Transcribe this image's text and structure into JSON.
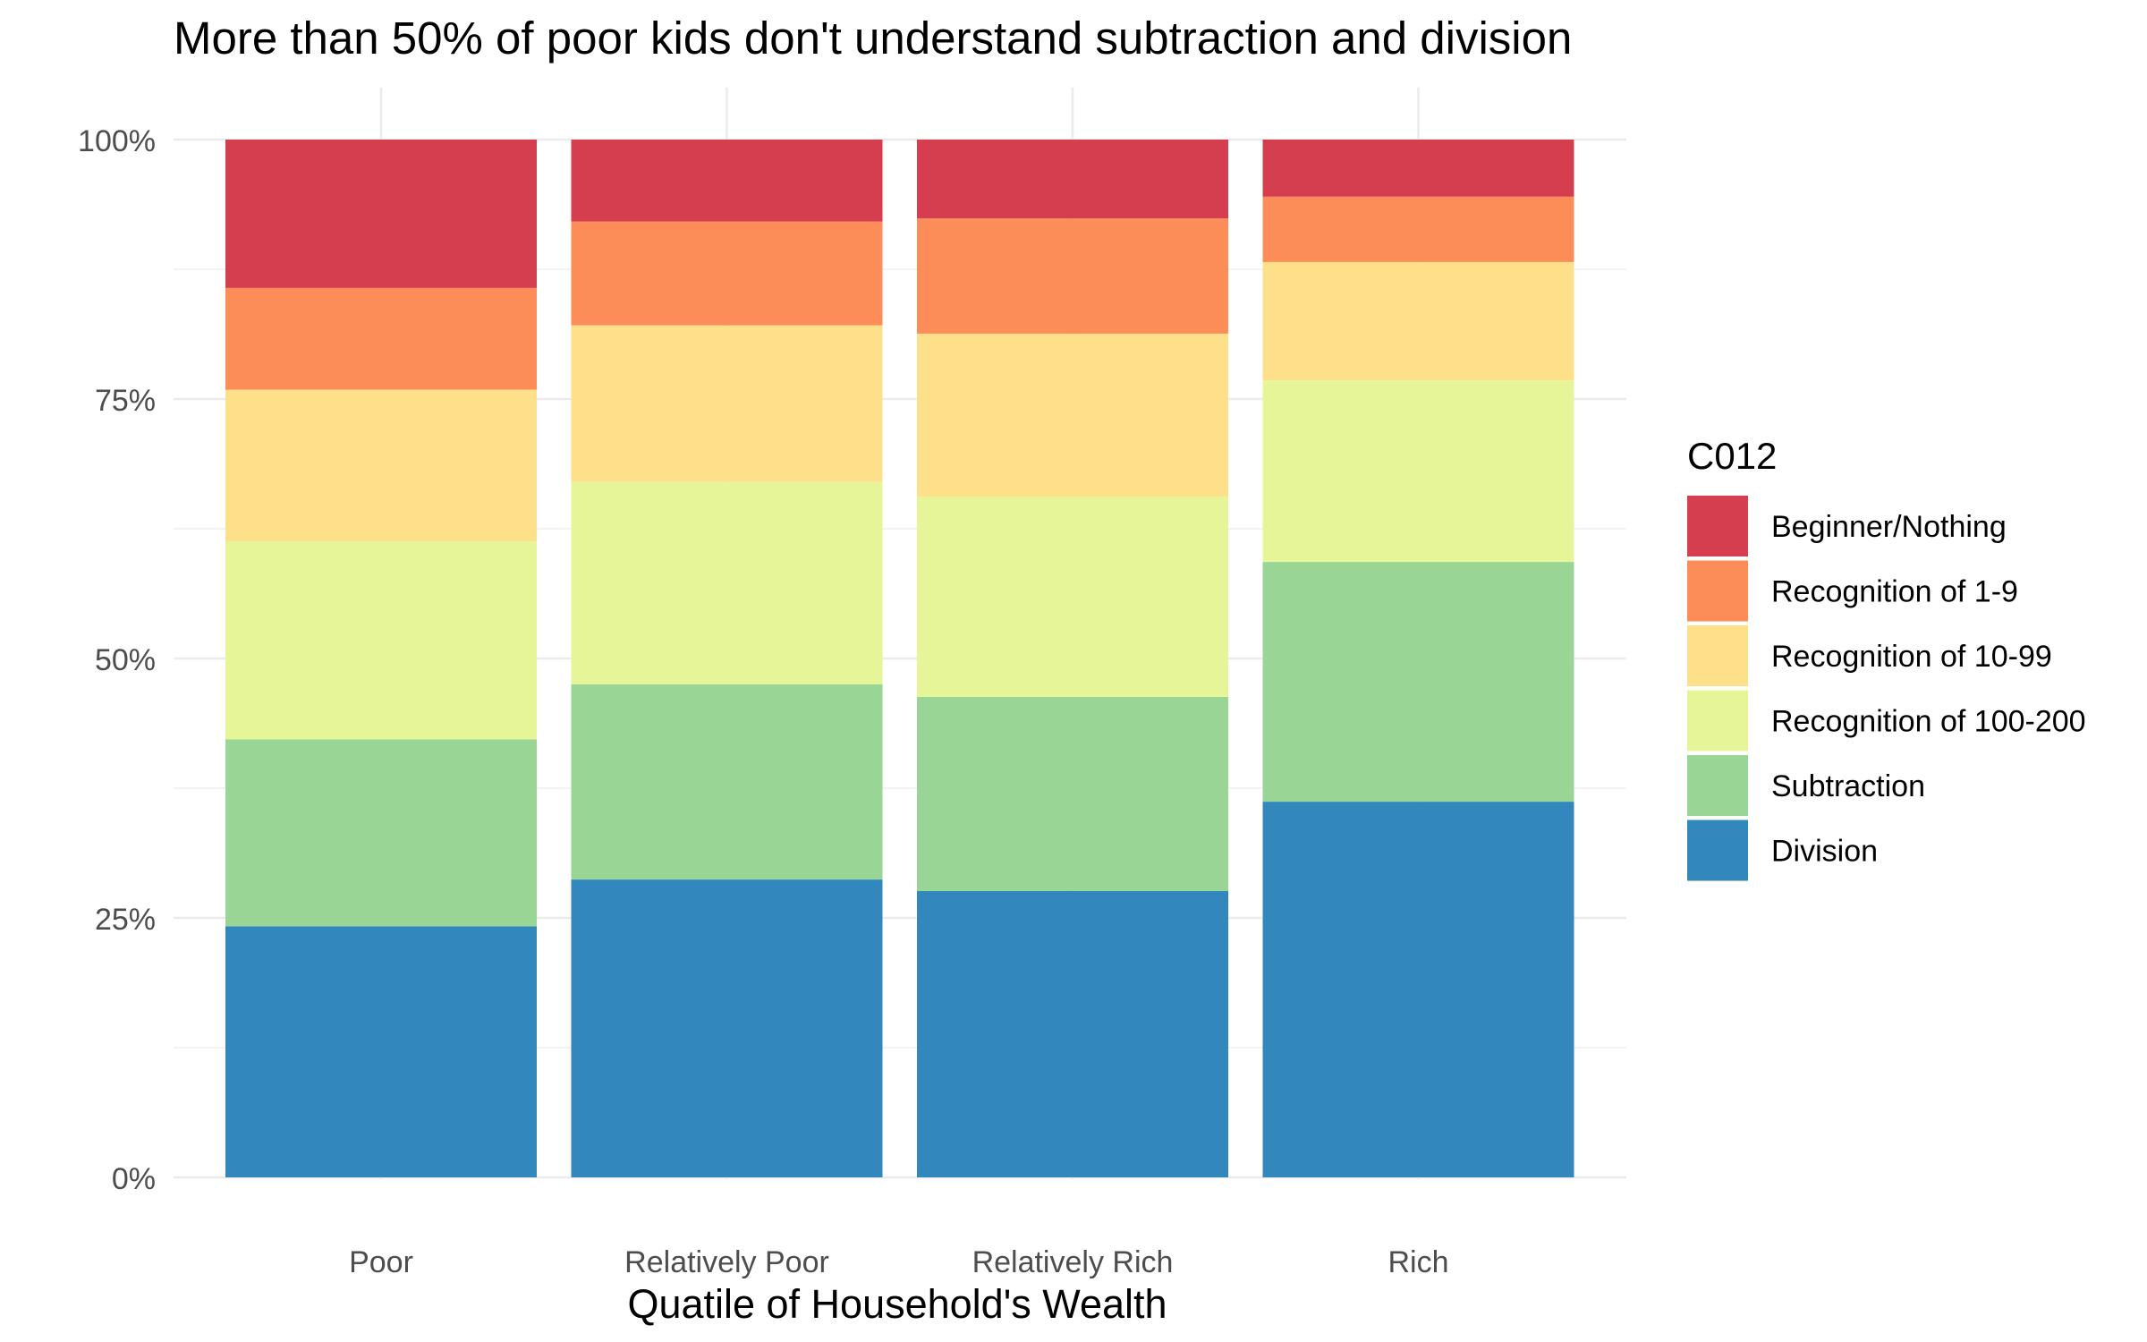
{
  "chart_data": {
    "type": "bar",
    "stacked": true,
    "normalized": true,
    "title": "More than 50% of poor kids don't understand subtraction and division",
    "xlabel": "Quatile of Household's Wealth",
    "ylabel": "",
    "ylim": [
      0,
      1
    ],
    "yticks": [
      {
        "value": 0,
        "label": "0%"
      },
      {
        "value": 0.25,
        "label": "25%"
      },
      {
        "value": 0.5,
        "label": "50%"
      },
      {
        "value": 0.75,
        "label": "75%"
      },
      {
        "value": 1,
        "label": "100%"
      }
    ],
    "grid": true,
    "categories": [
      "Poor",
      "Relatively Poor",
      "Relatively Rich",
      "Rich"
    ],
    "legend": {
      "title": "C012",
      "position": "right"
    },
    "series": [
      {
        "name": "Division",
        "color": "#3288BD",
        "values": [
          0.242,
          0.287,
          0.276,
          0.362
        ]
      },
      {
        "name": "Subtraction",
        "color": "#99D594",
        "values": [
          0.18,
          0.188,
          0.187,
          0.231
        ]
      },
      {
        "name": "Recognition of 100-200",
        "color": "#E6F598",
        "values": [
          0.191,
          0.195,
          0.193,
          0.175
        ]
      },
      {
        "name": "Recognition of 10-99",
        "color": "#FEE08B",
        "values": [
          0.146,
          0.151,
          0.157,
          0.114
        ]
      },
      {
        "name": "Recognition of 1-9",
        "color": "#FC8D59",
        "values": [
          0.098,
          0.1,
          0.111,
          0.063
        ]
      },
      {
        "name": "Beginner/Nothing",
        "color": "#D53E4F",
        "values": [
          0.143,
          0.079,
          0.076,
          0.055
        ]
      }
    ]
  }
}
